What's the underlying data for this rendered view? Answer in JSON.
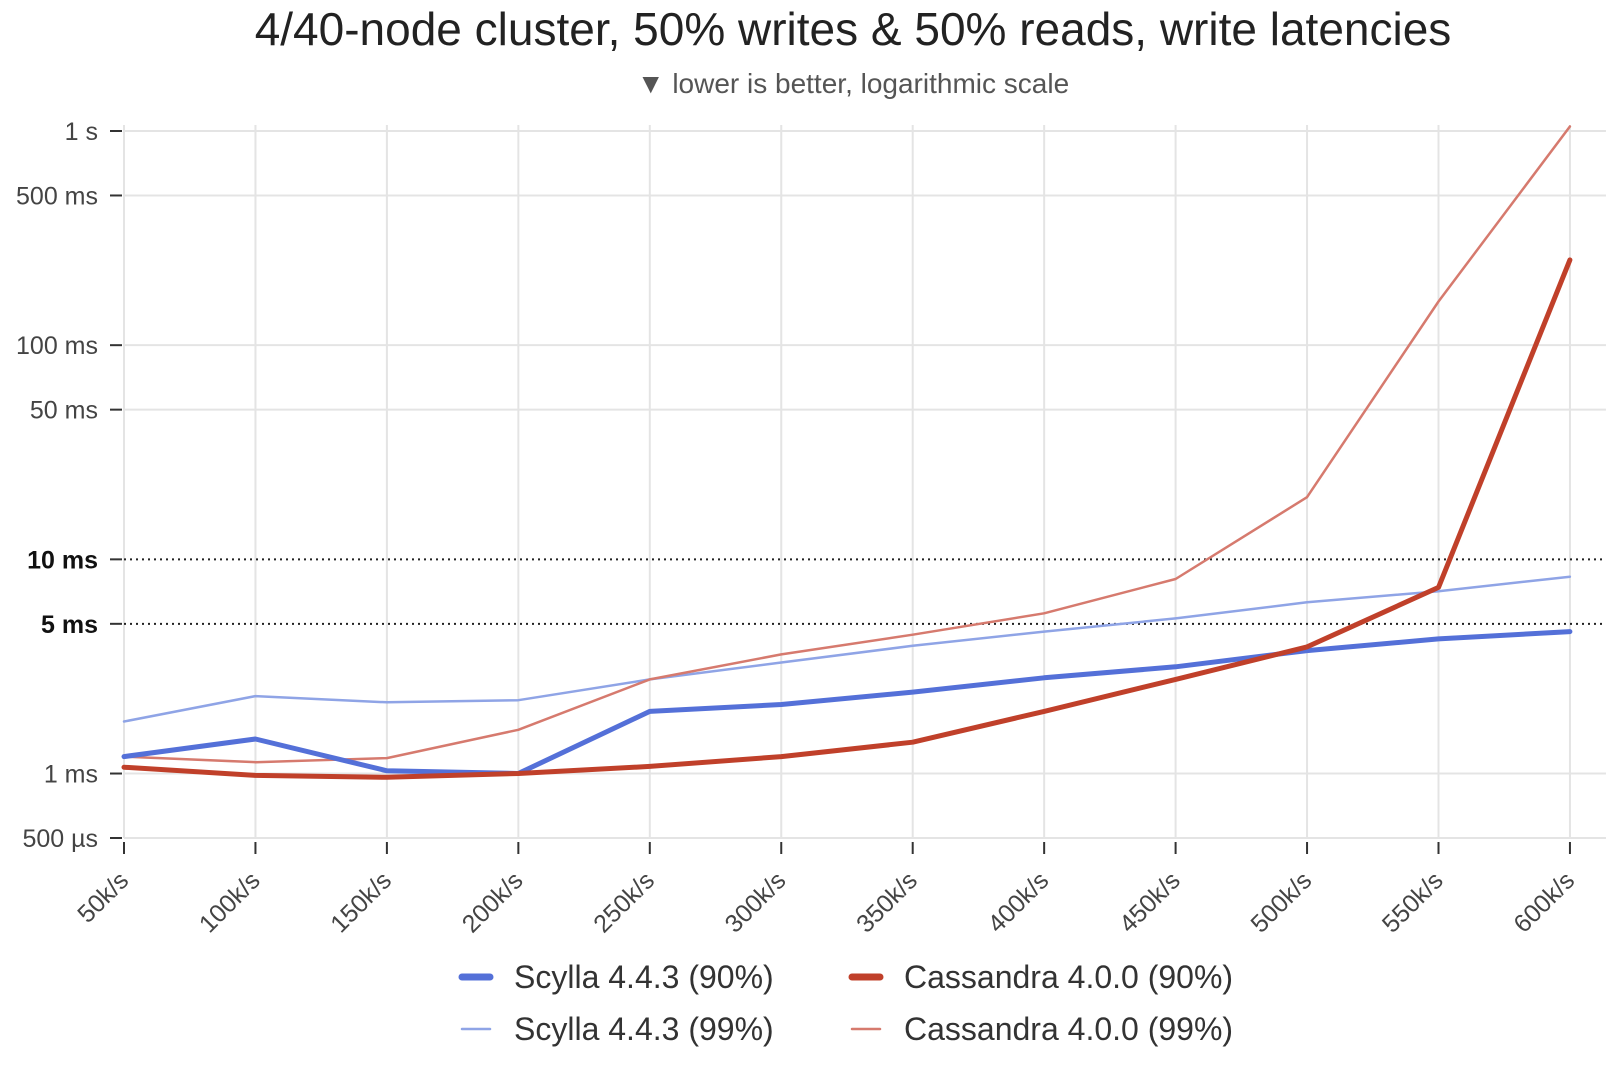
{
  "chart_data": {
    "type": "line",
    "title": "4/40-node cluster, 50% writes & 50% reads, write latencies",
    "subtitle": "▼ lower is better, logarithmic scale",
    "x": [
      "50k/s",
      "100k/s",
      "150k/s",
      "200k/s",
      "250k/s",
      "300k/s",
      "350k/s",
      "400k/s",
      "450k/s",
      "500k/s",
      "550k/s",
      "600k/s"
    ],
    "y_scale": "log",
    "y_unit": "ms",
    "ylim": [
      0.5,
      1000
    ],
    "y_ticks": [
      {
        "value": 0.5,
        "label": "500 µs",
        "emphasis": false
      },
      {
        "value": 1,
        "label": "1 ms",
        "emphasis": false
      },
      {
        "value": 5,
        "label": "5 ms",
        "emphasis": true
      },
      {
        "value": 10,
        "label": "10 ms",
        "emphasis": true
      },
      {
        "value": 50,
        "label": "50 ms",
        "emphasis": false
      },
      {
        "value": 100,
        "label": "100 ms",
        "emphasis": false
      },
      {
        "value": 500,
        "label": "500 ms",
        "emphasis": false
      },
      {
        "value": 1000,
        "label": "1 s",
        "emphasis": false
      }
    ],
    "reference_lines": [
      5,
      10
    ],
    "grid": true,
    "legend_position": "bottom",
    "series": [
      {
        "name": "Scylla 4.4.3 (90%)",
        "color": "#5470d8",
        "style": "thick",
        "values": [
          1.2,
          1.45,
          1.03,
          1.0,
          1.95,
          2.1,
          2.4,
          2.8,
          3.15,
          3.75,
          4.25,
          4.6
        ]
      },
      {
        "name": "Cassandra 4.0.0 (90%)",
        "color": "#c0402a",
        "style": "thick",
        "values": [
          1.07,
          0.98,
          0.96,
          1.0,
          1.08,
          1.2,
          1.4,
          1.95,
          2.75,
          3.9,
          7.4,
          250
        ]
      },
      {
        "name": "Scylla 4.4.3 (99%)",
        "color": "#8fa4e6",
        "style": "thin",
        "values": [
          1.75,
          2.3,
          2.15,
          2.2,
          2.75,
          3.3,
          3.95,
          4.6,
          5.3,
          6.3,
          7.1,
          8.3
        ]
      },
      {
        "name": "Cassandra 4.0.0 (99%)",
        "color": "#d67a6e",
        "style": "thin",
        "values": [
          1.2,
          1.13,
          1.18,
          1.6,
          2.75,
          3.6,
          4.45,
          5.6,
          8.1,
          19.5,
          160,
          1050
        ]
      }
    ],
    "legend_rows": [
      [
        "Scylla 4.4.3 (90%)",
        "Cassandra 4.0.0 (90%)"
      ],
      [
        "Scylla 4.4.3 (99%)",
        "Cassandra 4.0.0 (99%)"
      ]
    ]
  }
}
